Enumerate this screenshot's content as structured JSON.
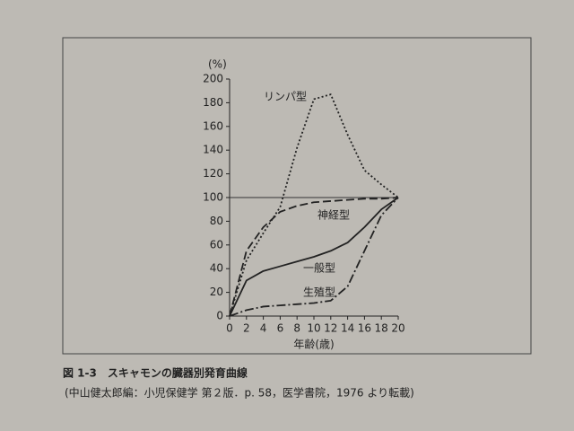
{
  "chart_data": {
    "type": "line",
    "y_unit": "(%)",
    "x_label": "年齢(歳)",
    "caption": "図 1-3　スキャモンの臓器別発育曲線",
    "source": "(中山健太郎編：小児保健学 第２版．p. 58，医学書院，1976 より転載)",
    "x": [
      0,
      2,
      4,
      6,
      8,
      10,
      12,
      14,
      16,
      18,
      20
    ],
    "series": [
      {
        "name": "リンパ型",
        "color": "#222222",
        "style": "dotted",
        "values": [
          0,
          47,
          70,
          92,
          142,
          183,
          187,
          153,
          123,
          111,
          100
        ]
      },
      {
        "name": "神経型",
        "color": "#222222",
        "style": "dashed",
        "values": [
          0,
          55,
          75,
          88,
          93,
          96,
          97,
          98,
          99,
          99,
          100
        ]
      },
      {
        "name": "一般型",
        "color": "#222222",
        "style": "solid",
        "values": [
          0,
          30,
          38,
          42,
          46,
          50,
          55,
          62,
          75,
          90,
          100
        ]
      },
      {
        "name": "生殖型",
        "color": "#222222",
        "style": "dashdot",
        "values": [
          0,
          5,
          8,
          9,
          10,
          11,
          13,
          25,
          55,
          85,
          100
        ]
      }
    ],
    "hline": 100,
    "xlim": [
      0,
      20
    ],
    "ylim": [
      0,
      200
    ],
    "xticks": [
      0,
      2,
      4,
      6,
      8,
      10,
      12,
      14,
      16,
      18,
      20
    ],
    "yticks": [
      0,
      20,
      40,
      60,
      80,
      100,
      120,
      140,
      160,
      180,
      200
    ]
  }
}
